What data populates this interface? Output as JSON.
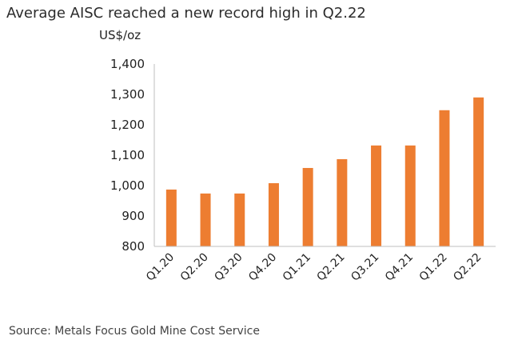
{
  "chart_data": {
    "type": "bar",
    "title": "Average AISC reached a new record high in Q2.22",
    "ylabel": "US$/oz",
    "xlabel": "",
    "categories": [
      "Q1.20",
      "Q2.20",
      "Q3.20",
      "Q4.20",
      "Q1.21",
      "Q2.21",
      "Q3.21",
      "Q4.21",
      "Q1.22",
      "Q2.22"
    ],
    "values": [
      987,
      974,
      974,
      1008,
      1058,
      1087,
      1132,
      1132,
      1248,
      1290
    ],
    "ylim": [
      800,
      1400
    ],
    "yticks": [
      "800",
      "900",
      "1,000",
      "1,100",
      "1,200",
      "1,300",
      "1,400"
    ],
    "grid": false,
    "legend": "none",
    "bar_color": "#ED7D31",
    "axis_color": "#BFBFBF",
    "source": "Source: Metals Focus Gold Mine Cost Service"
  }
}
